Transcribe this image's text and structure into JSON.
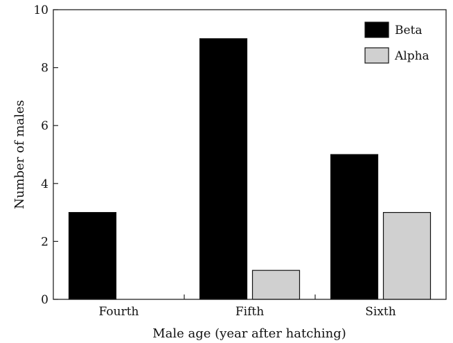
{
  "chart_data": {
    "type": "bar",
    "categories": [
      "Fourth",
      "Fifth",
      "Sixth"
    ],
    "series": [
      {
        "name": "Beta",
        "values": [
          3,
          9,
          5
        ],
        "color": "#000000"
      },
      {
        "name": "Alpha",
        "values": [
          0,
          1,
          3
        ],
        "color": "#d0d0d0"
      }
    ],
    "xlabel": "Male age (year after hatching)",
    "ylabel": "Number of males",
    "ylim": [
      0,
      10
    ],
    "yticks": [
      0,
      2,
      4,
      6,
      8,
      10
    ],
    "grid": false,
    "legend_position": "top-right"
  }
}
